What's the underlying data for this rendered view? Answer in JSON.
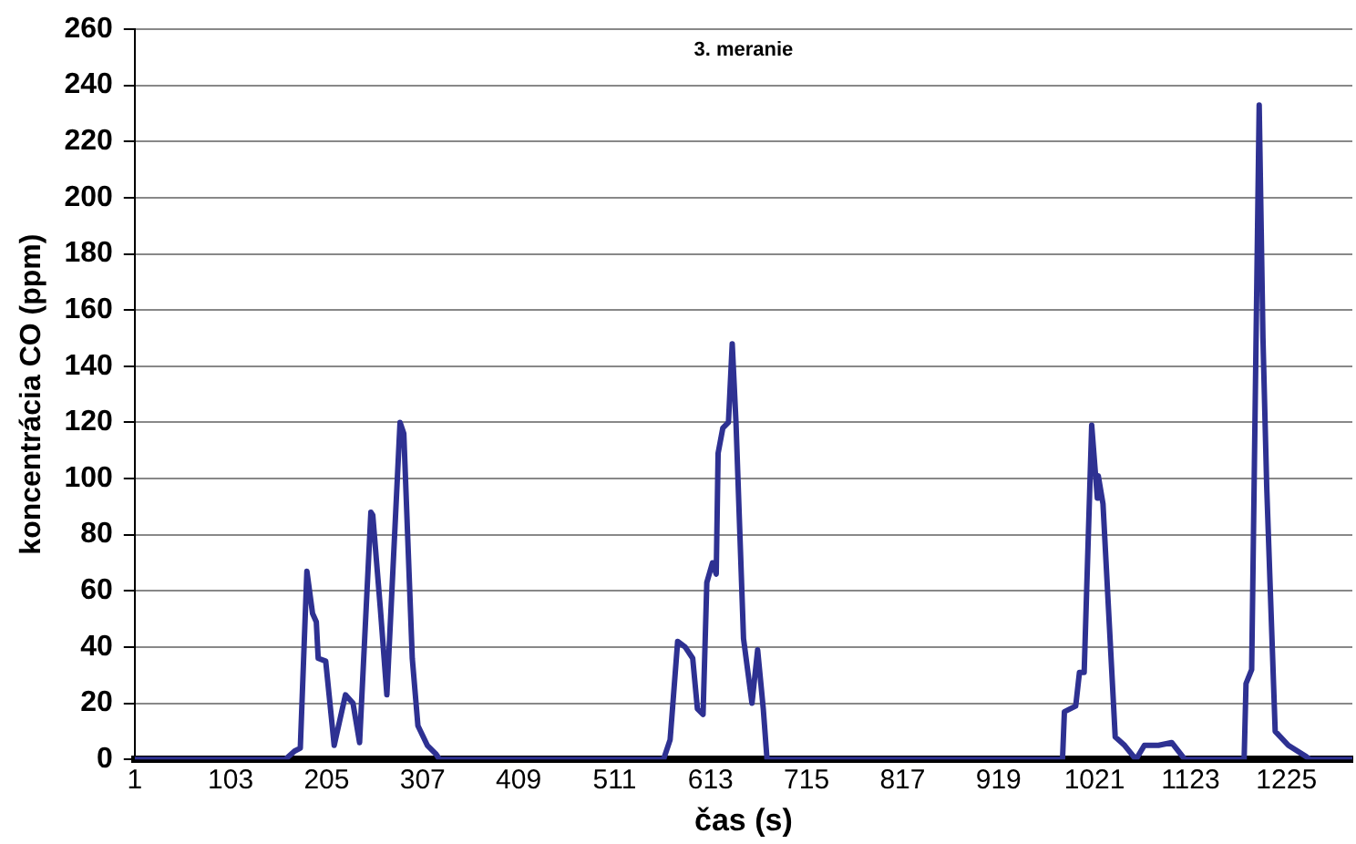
{
  "chart_data": {
    "type": "line",
    "title": "3. meranie",
    "xlabel": "čas (s)",
    "ylabel": "koncentrácia CO (ppm)",
    "x": [
      1,
      161,
      171,
      177,
      184,
      190,
      194,
      196,
      204,
      213,
      225,
      233,
      240,
      252,
      254,
      262,
      269,
      283,
      287,
      296,
      302,
      312,
      321,
      325,
      563,
      570,
      578,
      586,
      594,
      599,
      605,
      609,
      615,
      619,
      621,
      626,
      632,
      636,
      640,
      648,
      657,
      663,
      669,
      673,
      987,
      989,
      1001,
      1005,
      1010,
      1018,
      1024,
      1025,
      1030,
      1043,
      1053,
      1065,
      1074,
      1089,
      1103,
      1117,
      1180,
      1182,
      1188,
      1196,
      1200,
      1204,
      1213,
      1227,
      1246,
      1250,
      1295
    ],
    "series": [
      {
        "color": "#2e3192",
        "values": [
          0,
          0,
          3,
          4,
          67,
          52,
          49,
          36,
          35,
          5,
          23,
          20,
          6,
          88,
          87,
          54,
          23,
          120,
          116,
          36,
          12,
          5,
          2,
          0,
          0,
          7,
          42,
          40,
          36,
          18,
          16,
          63,
          70,
          66,
          109,
          118,
          120,
          148,
          120,
          43,
          20,
          39,
          18,
          0,
          0,
          17,
          19,
          31,
          31,
          119,
          93,
          101,
          91,
          8,
          5,
          0,
          5,
          5,
          6,
          0,
          0,
          27,
          32,
          233,
          150,
          97,
          10,
          5,
          1,
          0,
          0
        ]
      }
    ],
    "xlim": [
      1,
      1295
    ],
    "xticks": [
      1,
      103,
      205,
      307,
      409,
      511,
      613,
      715,
      817,
      919,
      1021,
      1123,
      1225
    ],
    "ylim": [
      0,
      260
    ],
    "yticks": [
      0,
      20,
      40,
      60,
      80,
      100,
      120,
      140,
      160,
      180,
      200,
      220,
      240,
      260
    ],
    "grid": "y",
    "legend": false,
    "marker": "none",
    "line_style": "solid"
  }
}
